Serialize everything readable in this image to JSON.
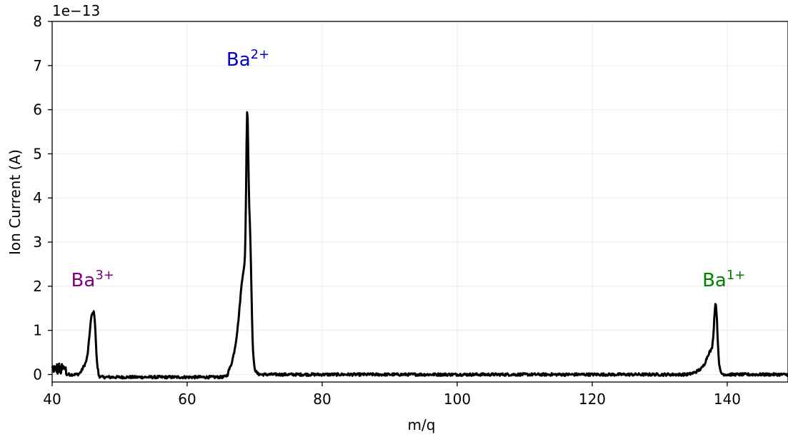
{
  "chart_data": {
    "type": "line",
    "title": "",
    "xlabel": "m/q",
    "ylabel": "Ion Current (A)",
    "y_scale_label": "1e−13",
    "y_multiplier": 1e-13,
    "xlim": [
      40,
      149
    ],
    "ylim": [
      -0.17,
      8
    ],
    "x_ticks": [
      40,
      60,
      80,
      100,
      120,
      140
    ],
    "y_ticks": [
      0,
      1,
      2,
      3,
      4,
      5,
      6,
      7,
      8
    ],
    "grid": true,
    "line_color": "#000000",
    "series": [
      {
        "peaks": [
          {
            "center": 45.9,
            "width": 0.55,
            "height": 1.3
          },
          {
            "center": 46.3,
            "width": 0.25,
            "height": 0.5
          },
          {
            "center": 44.9,
            "width": 0.6,
            "height": 0.2
          },
          {
            "center": 68.5,
            "width": 0.9,
            "height": 2.3
          },
          {
            "center": 68.9,
            "width": 0.22,
            "height": 3.7
          },
          {
            "center": 69.3,
            "width": 0.3,
            "height": 2.2
          },
          {
            "center": 67.3,
            "width": 0.9,
            "height": 0.45
          },
          {
            "center": 138.3,
            "width": 0.35,
            "height": 1.32
          },
          {
            "center": 137.6,
            "width": 0.9,
            "height": 0.5
          },
          {
            "center": 136.2,
            "width": 1.2,
            "height": 0.1
          }
        ],
        "baseline": 0.0,
        "noise": 0.03
      }
    ],
    "annotations": [
      {
        "label": "Ba",
        "superscript": "3+",
        "x": 46,
        "y": 2.0,
        "color": "#800080"
      },
      {
        "label": "Ba",
        "superscript": "2+",
        "x": 69,
        "y": 7.0,
        "color": "#0000cd"
      },
      {
        "label": "Ba",
        "superscript": "1+",
        "x": 139.5,
        "y": 2.0,
        "color": "#008000"
      }
    ]
  }
}
